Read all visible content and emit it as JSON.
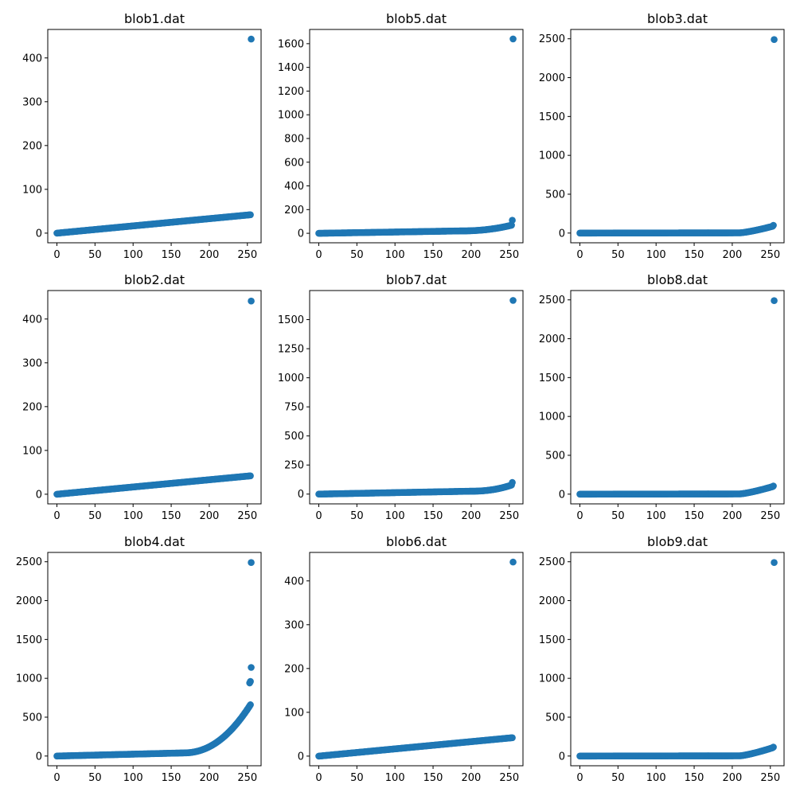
{
  "chart_data": [
    {
      "type": "scatter",
      "title": "blob1.dat",
      "xlabel": "",
      "ylabel": "",
      "xlim": [
        -12,
        268
      ],
      "ylim": [
        -22,
        465
      ],
      "xticks": [
        0,
        50,
        100,
        150,
        200,
        250
      ],
      "yticks": [
        0,
        100,
        200,
        300,
        400
      ],
      "color": "#1f77b4",
      "n": 256,
      "curve": "linear",
      "base": 0,
      "end": 42,
      "kind": "exp",
      "outlier": 443
    },
    {
      "type": "scatter",
      "title": "blob5.dat",
      "xlabel": "",
      "ylabel": "",
      "xlim": [
        -12,
        268
      ],
      "ylim": [
        -80,
        1720
      ],
      "xticks": [
        0,
        50,
        100,
        150,
        200,
        250
      ],
      "yticks": [
        0,
        200,
        400,
        600,
        800,
        1000,
        1200,
        1400,
        1600
      ],
      "color": "#1f77b4",
      "n": 256,
      "curve": "knee",
      "base": 0,
      "mid": 20,
      "knee": 185,
      "end": 70,
      "kind": "exp",
      "outlier": 1640,
      "second": 110
    },
    {
      "type": "scatter",
      "title": "blob3.dat",
      "xlabel": "",
      "ylabel": "",
      "xlim": [
        -12,
        268
      ],
      "ylim": [
        -125,
        2620
      ],
      "xticks": [
        0,
        50,
        100,
        150,
        200,
        250
      ],
      "yticks": [
        0,
        500,
        1000,
        1500,
        2000,
        2500
      ],
      "color": "#1f77b4",
      "n": 256,
      "curve": "knee",
      "base": 0,
      "mid": 3,
      "knee": 210,
      "end": 90,
      "kind": "lin",
      "outlier": 2490,
      "second": 100
    },
    {
      "type": "scatter",
      "title": "blob2.dat",
      "xlabel": "",
      "ylabel": "",
      "xlim": [
        -12,
        268
      ],
      "ylim": [
        -22,
        465
      ],
      "xticks": [
        0,
        50,
        100,
        150,
        200,
        250
      ],
      "yticks": [
        0,
        100,
        200,
        300,
        400
      ],
      "color": "#1f77b4",
      "n": 256,
      "curve": "linear",
      "base": 0,
      "end": 42,
      "kind": "exp",
      "outlier": 441
    },
    {
      "type": "scatter",
      "title": "blob7.dat",
      "xlabel": "",
      "ylabel": "",
      "xlim": [
        -12,
        268
      ],
      "ylim": [
        -84,
        1750
      ],
      "xticks": [
        0,
        50,
        100,
        150,
        200,
        250
      ],
      "yticks": [
        0,
        250,
        500,
        750,
        1000,
        1250,
        1500
      ],
      "color": "#1f77b4",
      "n": 256,
      "curve": "knee",
      "base": 0,
      "mid": 25,
      "knee": 200,
      "end": 80,
      "kind": "exp",
      "outlier": 1665,
      "second": 100
    },
    {
      "type": "scatter",
      "title": "blob8.dat",
      "xlabel": "",
      "ylabel": "",
      "xlim": [
        -12,
        268
      ],
      "ylim": [
        -125,
        2620
      ],
      "xticks": [
        0,
        50,
        100,
        150,
        200,
        250
      ],
      "yticks": [
        0,
        500,
        1000,
        1500,
        2000,
        2500
      ],
      "color": "#1f77b4",
      "n": 256,
      "curve": "knee",
      "base": 0,
      "mid": 3,
      "knee": 210,
      "end": 100,
      "kind": "lin",
      "outlier": 2490,
      "second": 105
    },
    {
      "type": "scatter",
      "title": "blob4.dat",
      "xlabel": "",
      "ylabel": "",
      "xlim": [
        -12,
        268
      ],
      "ylim": [
        -125,
        2620
      ],
      "xticks": [
        0,
        50,
        100,
        150,
        200,
        250
      ],
      "yticks": [
        0,
        500,
        1000,
        1500,
        2000,
        2500
      ],
      "color": "#1f77b4",
      "n": 256,
      "curve": "knee",
      "base": 0,
      "mid": 40,
      "knee": 165,
      "end": 660,
      "kind": "exp",
      "outlier": 2490,
      "extras": [
        [
          255,
          1140
        ],
        [
          254,
          960
        ],
        [
          253,
          940
        ]
      ]
    },
    {
      "type": "scatter",
      "title": "blob6.dat",
      "xlabel": "",
      "ylabel": "",
      "xlim": [
        -12,
        268
      ],
      "ylim": [
        -22,
        465
      ],
      "xticks": [
        0,
        50,
        100,
        150,
        200,
        250
      ],
      "yticks": [
        0,
        100,
        200,
        300,
        400
      ],
      "color": "#1f77b4",
      "n": 256,
      "curve": "linear",
      "base": 0,
      "end": 42,
      "kind": "exp",
      "outlier": 443
    },
    {
      "type": "scatter",
      "title": "blob9.dat",
      "xlabel": "",
      "ylabel": "",
      "xlim": [
        -12,
        268
      ],
      "ylim": [
        -125,
        2620
      ],
      "xticks": [
        0,
        50,
        100,
        150,
        200,
        250
      ],
      "yticks": [
        0,
        500,
        1000,
        1500,
        2000,
        2500
      ],
      "color": "#1f77b4",
      "n": 256,
      "curve": "knee",
      "base": 0,
      "mid": 3,
      "knee": 210,
      "end": 110,
      "kind": "lin",
      "outlier": 2490,
      "second": 115
    }
  ]
}
